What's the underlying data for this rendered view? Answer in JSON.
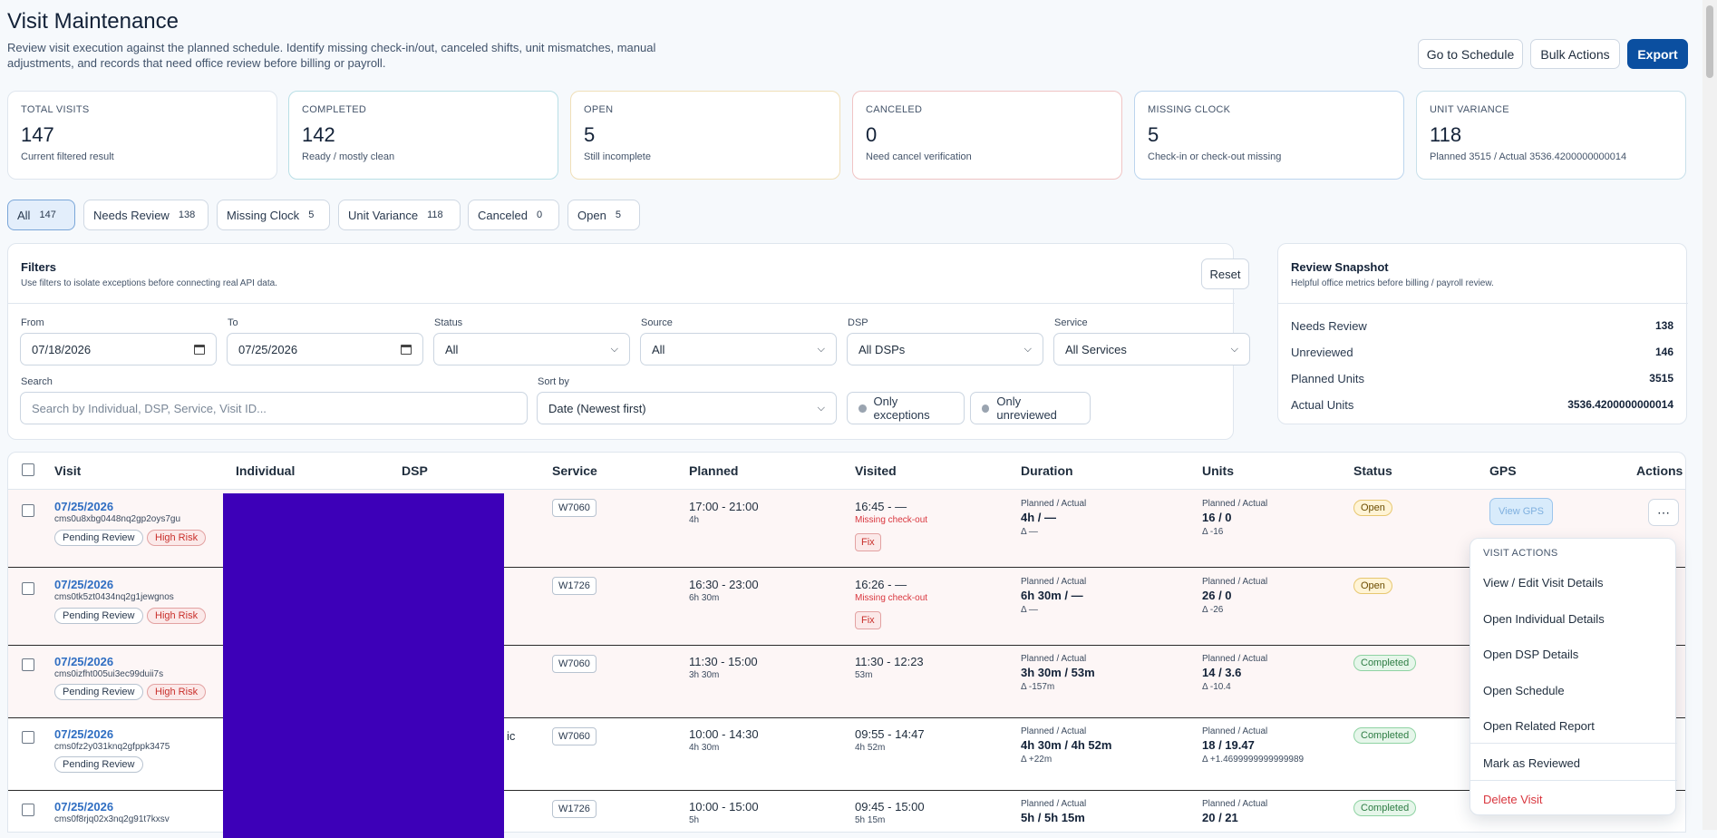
{
  "header": {
    "title": "Visit Maintenance",
    "subtitle_line1": "Review visit execution against the planned schedule. Identify missing check-in/out, canceled shifts, unit mismatches, manual",
    "subtitle_line2": "adjustments, and records that need office review before billing or payroll.",
    "go_to_schedule": "Go to Schedule",
    "bulk_actions": "Bulk Actions",
    "export": "Export"
  },
  "cards": [
    {
      "label": "TOTAL VISITS",
      "value": "147",
      "sub": "Current filtered result",
      "border": "#dfe6ee"
    },
    {
      "label": "COMPLETED",
      "value": "142",
      "sub": "Ready / mostly clean",
      "border": "#b9dfe6"
    },
    {
      "label": "OPEN",
      "value": "5",
      "sub": "Still incomplete",
      "border": "#f0dfb8"
    },
    {
      "label": "CANCELED",
      "value": "0",
      "sub": "Need cancel verification",
      "border": "#f0c4c4"
    },
    {
      "label": "MISSING CLOCK",
      "value": "5",
      "sub": "Check-in or check-out missing",
      "border": "#bcd5ee"
    },
    {
      "label": "UNIT VARIANCE",
      "value": "118",
      "sub": "Planned 3515 / Actual 3536.4200000000014",
      "border": "#c8e0ea"
    }
  ],
  "chips": [
    {
      "label": "All",
      "count": "147"
    },
    {
      "label": "Needs Review",
      "count": "138"
    },
    {
      "label": "Missing Clock",
      "count": "5"
    },
    {
      "label": "Unit Variance",
      "count": "118"
    },
    {
      "label": "Canceled",
      "count": "0"
    },
    {
      "label": "Open",
      "count": "5"
    }
  ],
  "filters": {
    "title": "Filters",
    "subtitle": "Use filters to isolate exceptions before connecting real API data.",
    "reset": "Reset",
    "from_label": "From",
    "from_value": "07/18/2026",
    "to_label": "To",
    "to_value": "07/25/2026",
    "status_label": "Status",
    "status_value": "All",
    "source_label": "Source",
    "source_value": "All",
    "dsp_label": "DSP",
    "dsp_value": "All DSPs",
    "service_label": "Service",
    "service_value": "All Services",
    "search_label": "Search",
    "search_placeholder": "Search by Individual, DSP, Service, Visit ID...",
    "sort_label": "Sort by",
    "sort_value": "Date (Newest first)",
    "only_exceptions": "Only exceptions",
    "only_unreviewed": "Only unreviewed"
  },
  "snapshot": {
    "title": "Review Snapshot",
    "subtitle": "Helpful office metrics before billing / payroll review.",
    "rows": [
      {
        "label": "Needs Review",
        "value": "138"
      },
      {
        "label": "Unreviewed",
        "value": "146"
      },
      {
        "label": "Planned Units",
        "value": "3515"
      },
      {
        "label": "Actual Units",
        "value": "3536.4200000000014"
      }
    ]
  },
  "table": {
    "headers": [
      "Visit",
      "Individual",
      "DSP",
      "Service",
      "Planned",
      "Visited",
      "Duration",
      "Units",
      "Status",
      "GPS",
      "Actions"
    ],
    "planned_actual_label": "Planned / Actual",
    "view_gps": "View GPS",
    "rows": [
      {
        "date": "07/25/2026",
        "id": "cms0u8xbg0448nq2gp2oys7gu",
        "review": "Pending Review",
        "risk": "High Risk",
        "service": "W7060",
        "planned": "17:00 - 21:00",
        "planned_dur": "4h",
        "visited": "16:45 - —",
        "visited_note": "Missing check-out",
        "fix": "Fix",
        "dur_value": "4h / —",
        "dur_delta": "Δ —",
        "units_value": "16 / 0",
        "units_delta": "Δ -16",
        "status": "Open"
      },
      {
        "date": "07/25/2026",
        "id": "cms0tk5zt0434nq2g1jewgnos",
        "review": "Pending Review",
        "risk": "High Risk",
        "service": "W1726",
        "planned": "16:30 - 23:00",
        "planned_dur": "6h 30m",
        "visited": "16:26 - —",
        "visited_note": "Missing check-out",
        "fix": "Fix",
        "dur_value": "6h 30m / —",
        "dur_delta": "Δ —",
        "units_value": "26 / 0",
        "units_delta": "Δ -26",
        "status": "Open"
      },
      {
        "date": "07/25/2026",
        "id": "cms0izfht005ui3ec99duii7s",
        "review": "Pending Review",
        "risk": "High Risk",
        "service": "W7060",
        "planned": "11:30 - 15:00",
        "planned_dur": "3h 30m",
        "visited": "11:30 - 12:23",
        "visited_note": "53m",
        "dur_value": "3h 30m / 53m",
        "dur_delta": "Δ -157m",
        "units_value": "14 / 3.6",
        "units_delta": "Δ -10.4",
        "status": "Completed"
      },
      {
        "date": "07/25/2026",
        "id": "cms0fz2y031knq2gfppk3475",
        "review": "Pending Review",
        "dsp_fragment": "ic",
        "service": "W7060",
        "planned": "10:00 - 14:30",
        "planned_dur": "4h 30m",
        "visited": "09:55 - 14:47",
        "visited_note": "4h 52m",
        "dur_value": "4h 30m / 4h 52m",
        "dur_delta": "Δ +22m",
        "units_value": "18 / 19.47",
        "units_delta": "Δ +1.4699999999999989",
        "status": "Completed"
      },
      {
        "date": "07/25/2026",
        "id": "cms0f8rjq02x3nq2g91t7kxsv",
        "service": "W1726",
        "planned": "10:00 - 15:00",
        "planned_dur": "5h",
        "visited": "09:45 - 15:00",
        "visited_note": "5h 15m",
        "dur_value": "5h / 5h 15m",
        "units_value": "20 / 21",
        "status": "Completed"
      }
    ]
  },
  "menu": {
    "title": "VISIT ACTIONS",
    "items": [
      "View / Edit Visit Details",
      "Open Individual Details",
      "Open DSP Details",
      "Open Schedule",
      "Open Related Report"
    ],
    "mark_reviewed": "Mark as Reviewed",
    "delete": "Delete Visit"
  },
  "colors": {
    "primary": "#0b4fa0",
    "link": "#2f6ec2",
    "danger": "#d9363e",
    "success": "#2e9e55",
    "redaction": "#3d00b8"
  }
}
